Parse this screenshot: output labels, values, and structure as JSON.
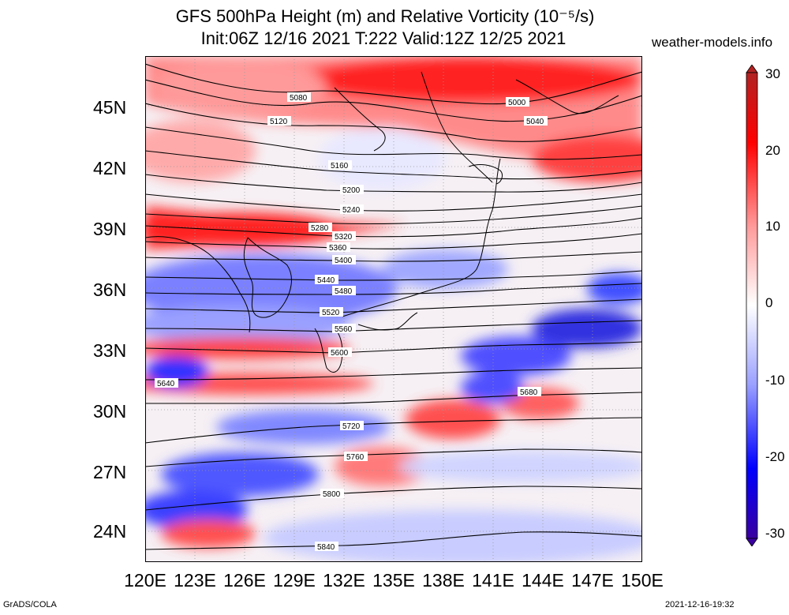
{
  "title_line1": "GFS 500hPa Height (m) and Relative Vorticity (10⁻⁵/s)",
  "title_line2": "Init:06Z 12/16 2021 T:222 Valid:12Z 12/25 2021",
  "site": "weather-models.info",
  "footer_left": "GrADS/COLA",
  "footer_right": "2021-12-16-19:32",
  "lat_labels": [
    "45N",
    "42N",
    "39N",
    "36N",
    "33N",
    "30N",
    "27N",
    "24N"
  ],
  "lon_labels": [
    "120E",
    "123E",
    "126E",
    "129E",
    "132E",
    "135E",
    "138E",
    "141E",
    "144E",
    "147E",
    "150E"
  ],
  "colorbar": {
    "labels": [
      "30",
      "20",
      "10",
      "0",
      "-10",
      "-20",
      "-30"
    ],
    "colors": [
      "#b22222",
      "#ff0000",
      "#ff9a9a",
      "#ffffff",
      "#9aa0ff",
      "#0000ff",
      "#3a00a0"
    ]
  },
  "contour_labels": [
    "5000",
    "5040",
    "5080",
    "5120",
    "5160",
    "5200",
    "5240",
    "5280",
    "5320",
    "5360",
    "5400",
    "5440",
    "5480",
    "5520",
    "5560",
    "5600",
    "5640",
    "5680",
    "5720",
    "5760",
    "5800",
    "5840"
  ]
}
